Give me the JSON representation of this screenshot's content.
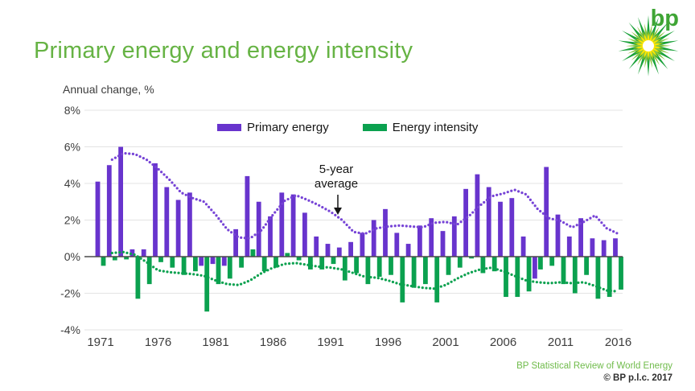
{
  "header": {
    "title": "Primary energy and energy intensity",
    "logo_text": "bp"
  },
  "chart_data": {
    "type": "bar",
    "title": "Primary energy and energy intensity",
    "axis_label": "Annual change, %",
    "grid": true,
    "legend_position": "top-center",
    "ylim": [
      -4,
      8
    ],
    "yticks": [
      {
        "label": "8%",
        "value": 8
      },
      {
        "label": "6%",
        "value": 6
      },
      {
        "label": "4%",
        "value": 4
      },
      {
        "label": "2%",
        "value": 2
      },
      {
        "label": "0%",
        "value": 0
      },
      {
        "label": "-2%",
        "value": -2
      },
      {
        "label": "-4%",
        "value": -4
      }
    ],
    "xticks": [
      "1971",
      "1976",
      "1981",
      "1986",
      "1991",
      "1996",
      "2001",
      "2006",
      "2011",
      "2016"
    ],
    "years_start": 1971,
    "years_end": 2016,
    "series": [
      {
        "name": "Primary energy",
        "color": "#6834cd",
        "values": [
          4.1,
          5.0,
          6.0,
          0.4,
          0.4,
          5.1,
          3.8,
          3.1,
          3.5,
          -0.5,
          -0.4,
          -0.5,
          1.5,
          4.4,
          3.0,
          2.2,
          3.5,
          3.4,
          2.4,
          1.1,
          0.7,
          0.5,
          0.8,
          1.3,
          2.0,
          2.6,
          1.3,
          0.7,
          1.7,
          2.1,
          1.4,
          2.2,
          3.7,
          4.5,
          3.8,
          3.0,
          3.2,
          1.1,
          -1.2,
          4.9,
          2.3,
          1.1,
          2.1,
          1.0,
          0.9,
          1.0
        ]
      },
      {
        "name": "Energy intensity",
        "color": "#0ba14f",
        "values": [
          -0.5,
          -0.2,
          -0.15,
          -2.3,
          -1.5,
          -0.3,
          -0.6,
          -1.0,
          -0.8,
          -3.0,
          -1.5,
          -1.2,
          -0.6,
          0.4,
          -0.8,
          -0.6,
          0.2,
          -0.2,
          -0.7,
          -0.7,
          -0.4,
          -1.3,
          -0.9,
          -1.5,
          -1.1,
          -1.0,
          -2.5,
          -1.7,
          -1.5,
          -2.5,
          -1.0,
          -0.6,
          -0.1,
          -0.9,
          -0.8,
          -2.2,
          -2.2,
          -1.9,
          -0.7,
          -0.5,
          -1.5,
          -2.0,
          -1.0,
          -2.3,
          -2.2,
          -1.8
        ]
      }
    ],
    "five_year_average_lines": [
      {
        "series": "Primary energy",
        "style": "dotted",
        "color": "#7643d6",
        "start_year": 1972,
        "values": [
          5.3,
          5.65,
          5.6,
          5.3,
          4.8,
          4.2,
          3.5,
          3.2,
          3.0,
          2.3,
          1.5,
          1.05,
          1.0,
          1.45,
          2.3,
          3.05,
          3.35,
          3.1,
          2.8,
          2.45,
          2.0,
          1.35,
          1.25,
          1.55,
          1.65,
          1.7,
          1.65,
          1.6,
          1.85,
          1.9,
          1.75,
          2.2,
          2.8,
          3.3,
          3.45,
          3.65,
          3.4,
          2.6,
          2.1,
          1.95,
          1.6,
          1.9,
          2.25,
          1.55,
          1.25
        ]
      },
      {
        "series": "Energy intensity",
        "style": "dotted",
        "color": "#0ba14f",
        "start_year": 1972,
        "values": [
          0.2,
          0.25,
          0.1,
          -0.3,
          -0.75,
          -0.85,
          -0.9,
          -0.95,
          -1.05,
          -1.3,
          -1.5,
          -1.55,
          -1.3,
          -0.9,
          -0.6,
          -0.4,
          -0.35,
          -0.45,
          -0.55,
          -0.6,
          -0.7,
          -0.9,
          -1.1,
          -1.15,
          -1.3,
          -1.5,
          -1.6,
          -1.7,
          -1.75,
          -1.55,
          -1.2,
          -0.9,
          -0.7,
          -0.6,
          -0.8,
          -1.05,
          -1.3,
          -1.4,
          -1.45,
          -1.4,
          -1.45,
          -1.4,
          -1.6,
          -1.85,
          -1.9
        ]
      }
    ],
    "annotation": {
      "line1": "5-year",
      "line2": "average"
    }
  },
  "footer": {
    "line1": "BP Statistical Review of World Energy",
    "line2": "© BP p.l.c. 2017"
  }
}
